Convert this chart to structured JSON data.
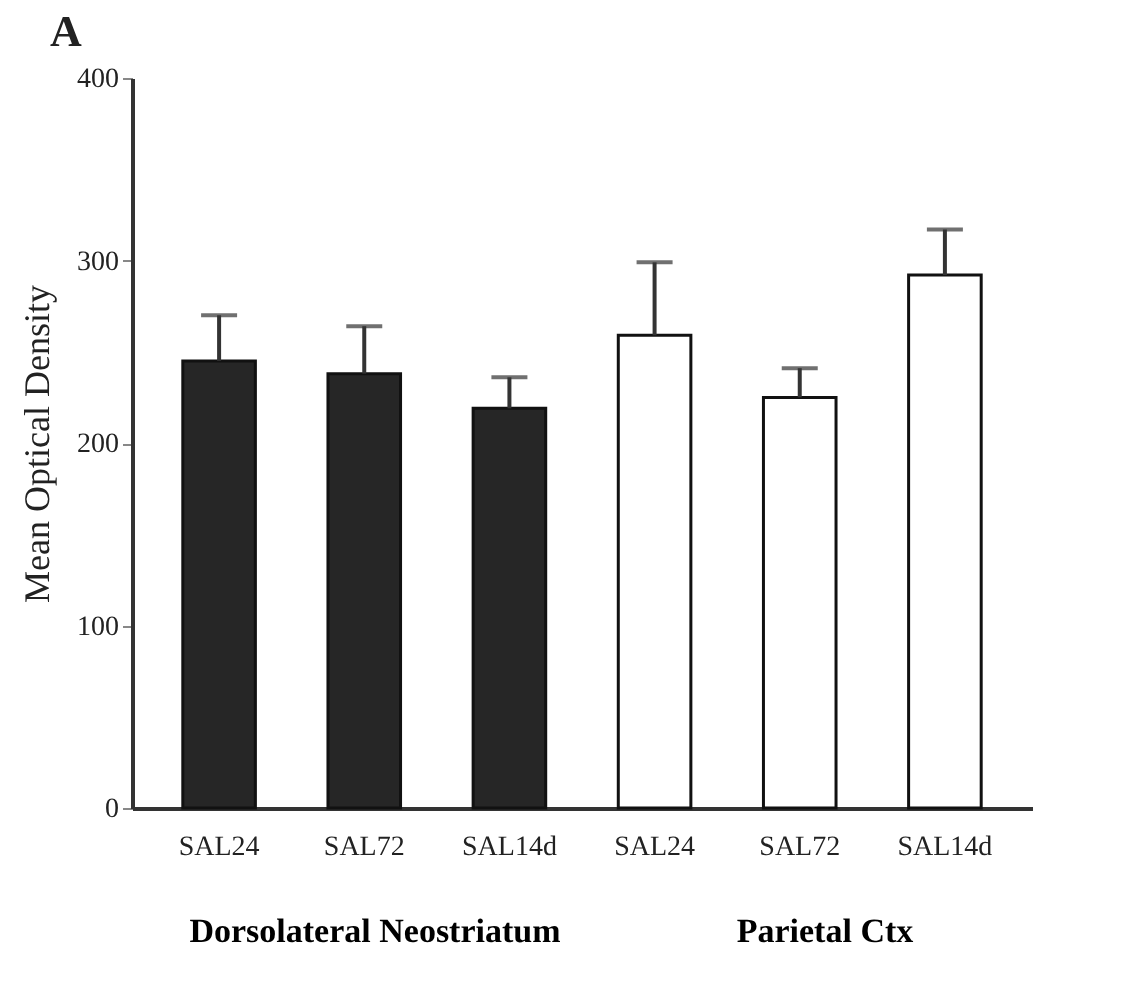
{
  "chart_data": {
    "type": "bar",
    "title": "A",
    "ylabel": "Mean Optical Density",
    "categories": [
      "SAL24",
      "SAL72",
      "SAL14d",
      "SAL24",
      "SAL72",
      "SAL14d"
    ],
    "values": [
      245,
      238,
      219,
      259,
      225,
      292
    ],
    "errors": [
      25,
      26,
      17,
      40,
      16,
      25
    ],
    "colors": [
      "#262626",
      "#262626",
      "#262626",
      "#ffffff",
      "#ffffff",
      "#ffffff"
    ],
    "ylim": [
      0,
      400
    ],
    "yticks": [
      0,
      100,
      200,
      300,
      400
    ],
    "grid": false,
    "annotations": [
      "Dorsolateral Neostriatum",
      "Parietal Ctx"
    ]
  }
}
